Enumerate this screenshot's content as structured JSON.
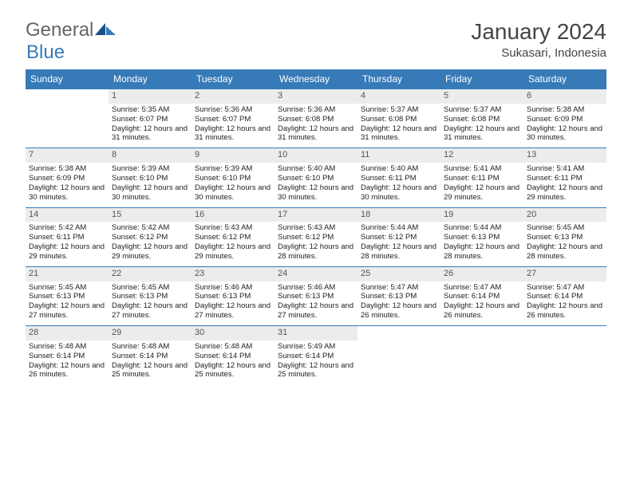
{
  "brand": {
    "part1": "General",
    "part2": "Blue"
  },
  "title": "January 2024",
  "location": "Sukasari, Indonesia",
  "colors": {
    "header_bg": "#377ab8",
    "header_text": "#ffffff",
    "daynum_bg": "#ececec",
    "cell_border": "#377ab8",
    "brand_blue": "#377ab8",
    "brand_gray": "#666666"
  },
  "weekdays": [
    "Sunday",
    "Monday",
    "Tuesday",
    "Wednesday",
    "Thursday",
    "Friday",
    "Saturday"
  ],
  "weeks": [
    [
      {
        "day": "",
        "sunrise": "",
        "sunset": "",
        "daylight": ""
      },
      {
        "day": "1",
        "sunrise": "Sunrise: 5:35 AM",
        "sunset": "Sunset: 6:07 PM",
        "daylight": "Daylight: 12 hours and 31 minutes."
      },
      {
        "day": "2",
        "sunrise": "Sunrise: 5:36 AM",
        "sunset": "Sunset: 6:07 PM",
        "daylight": "Daylight: 12 hours and 31 minutes."
      },
      {
        "day": "3",
        "sunrise": "Sunrise: 5:36 AM",
        "sunset": "Sunset: 6:08 PM",
        "daylight": "Daylight: 12 hours and 31 minutes."
      },
      {
        "day": "4",
        "sunrise": "Sunrise: 5:37 AM",
        "sunset": "Sunset: 6:08 PM",
        "daylight": "Daylight: 12 hours and 31 minutes."
      },
      {
        "day": "5",
        "sunrise": "Sunrise: 5:37 AM",
        "sunset": "Sunset: 6:08 PM",
        "daylight": "Daylight: 12 hours and 31 minutes."
      },
      {
        "day": "6",
        "sunrise": "Sunrise: 5:38 AM",
        "sunset": "Sunset: 6:09 PM",
        "daylight": "Daylight: 12 hours and 30 minutes."
      }
    ],
    [
      {
        "day": "7",
        "sunrise": "Sunrise: 5:38 AM",
        "sunset": "Sunset: 6:09 PM",
        "daylight": "Daylight: 12 hours and 30 minutes."
      },
      {
        "day": "8",
        "sunrise": "Sunrise: 5:39 AM",
        "sunset": "Sunset: 6:10 PM",
        "daylight": "Daylight: 12 hours and 30 minutes."
      },
      {
        "day": "9",
        "sunrise": "Sunrise: 5:39 AM",
        "sunset": "Sunset: 6:10 PM",
        "daylight": "Daylight: 12 hours and 30 minutes."
      },
      {
        "day": "10",
        "sunrise": "Sunrise: 5:40 AM",
        "sunset": "Sunset: 6:10 PM",
        "daylight": "Daylight: 12 hours and 30 minutes."
      },
      {
        "day": "11",
        "sunrise": "Sunrise: 5:40 AM",
        "sunset": "Sunset: 6:11 PM",
        "daylight": "Daylight: 12 hours and 30 minutes."
      },
      {
        "day": "12",
        "sunrise": "Sunrise: 5:41 AM",
        "sunset": "Sunset: 6:11 PM",
        "daylight": "Daylight: 12 hours and 29 minutes."
      },
      {
        "day": "13",
        "sunrise": "Sunrise: 5:41 AM",
        "sunset": "Sunset: 6:11 PM",
        "daylight": "Daylight: 12 hours and 29 minutes."
      }
    ],
    [
      {
        "day": "14",
        "sunrise": "Sunrise: 5:42 AM",
        "sunset": "Sunset: 6:11 PM",
        "daylight": "Daylight: 12 hours and 29 minutes."
      },
      {
        "day": "15",
        "sunrise": "Sunrise: 5:42 AM",
        "sunset": "Sunset: 6:12 PM",
        "daylight": "Daylight: 12 hours and 29 minutes."
      },
      {
        "day": "16",
        "sunrise": "Sunrise: 5:43 AM",
        "sunset": "Sunset: 6:12 PM",
        "daylight": "Daylight: 12 hours and 29 minutes."
      },
      {
        "day": "17",
        "sunrise": "Sunrise: 5:43 AM",
        "sunset": "Sunset: 6:12 PM",
        "daylight": "Daylight: 12 hours and 28 minutes."
      },
      {
        "day": "18",
        "sunrise": "Sunrise: 5:44 AM",
        "sunset": "Sunset: 6:12 PM",
        "daylight": "Daylight: 12 hours and 28 minutes."
      },
      {
        "day": "19",
        "sunrise": "Sunrise: 5:44 AM",
        "sunset": "Sunset: 6:13 PM",
        "daylight": "Daylight: 12 hours and 28 minutes."
      },
      {
        "day": "20",
        "sunrise": "Sunrise: 5:45 AM",
        "sunset": "Sunset: 6:13 PM",
        "daylight": "Daylight: 12 hours and 28 minutes."
      }
    ],
    [
      {
        "day": "21",
        "sunrise": "Sunrise: 5:45 AM",
        "sunset": "Sunset: 6:13 PM",
        "daylight": "Daylight: 12 hours and 27 minutes."
      },
      {
        "day": "22",
        "sunrise": "Sunrise: 5:45 AM",
        "sunset": "Sunset: 6:13 PM",
        "daylight": "Daylight: 12 hours and 27 minutes."
      },
      {
        "day": "23",
        "sunrise": "Sunrise: 5:46 AM",
        "sunset": "Sunset: 6:13 PM",
        "daylight": "Daylight: 12 hours and 27 minutes."
      },
      {
        "day": "24",
        "sunrise": "Sunrise: 5:46 AM",
        "sunset": "Sunset: 6:13 PM",
        "daylight": "Daylight: 12 hours and 27 minutes."
      },
      {
        "day": "25",
        "sunrise": "Sunrise: 5:47 AM",
        "sunset": "Sunset: 6:13 PM",
        "daylight": "Daylight: 12 hours and 26 minutes."
      },
      {
        "day": "26",
        "sunrise": "Sunrise: 5:47 AM",
        "sunset": "Sunset: 6:14 PM",
        "daylight": "Daylight: 12 hours and 26 minutes."
      },
      {
        "day": "27",
        "sunrise": "Sunrise: 5:47 AM",
        "sunset": "Sunset: 6:14 PM",
        "daylight": "Daylight: 12 hours and 26 minutes."
      }
    ],
    [
      {
        "day": "28",
        "sunrise": "Sunrise: 5:48 AM",
        "sunset": "Sunset: 6:14 PM",
        "daylight": "Daylight: 12 hours and 26 minutes."
      },
      {
        "day": "29",
        "sunrise": "Sunrise: 5:48 AM",
        "sunset": "Sunset: 6:14 PM",
        "daylight": "Daylight: 12 hours and 25 minutes."
      },
      {
        "day": "30",
        "sunrise": "Sunrise: 5:48 AM",
        "sunset": "Sunset: 6:14 PM",
        "daylight": "Daylight: 12 hours and 25 minutes."
      },
      {
        "day": "31",
        "sunrise": "Sunrise: 5:49 AM",
        "sunset": "Sunset: 6:14 PM",
        "daylight": "Daylight: 12 hours and 25 minutes."
      },
      {
        "day": "",
        "sunrise": "",
        "sunset": "",
        "daylight": ""
      },
      {
        "day": "",
        "sunrise": "",
        "sunset": "",
        "daylight": ""
      },
      {
        "day": "",
        "sunrise": "",
        "sunset": "",
        "daylight": ""
      }
    ]
  ]
}
